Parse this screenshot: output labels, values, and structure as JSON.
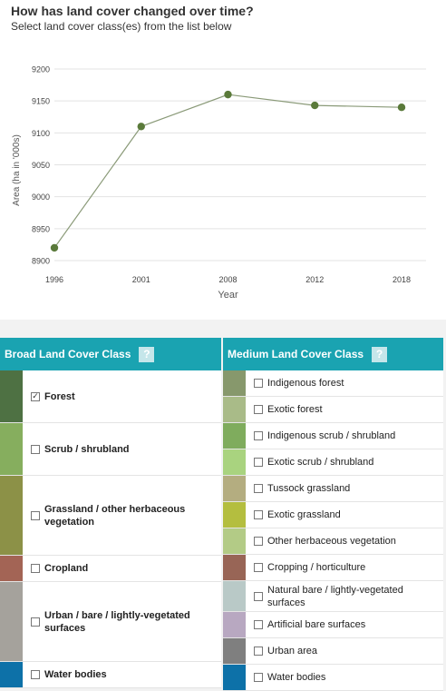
{
  "header": {
    "title": "How has land cover changed over time?",
    "subtitle": "Select land cover class(es) from the list below"
  },
  "chart_data": {
    "type": "line",
    "title": "",
    "xlabel": "Year",
    "ylabel": "Area (ha in '000s)",
    "categories": [
      "1996",
      "2001",
      "2008",
      "2012",
      "2018"
    ],
    "series": [
      {
        "values": [
          8920,
          9110,
          9160,
          9143,
          9140
        ],
        "color": "#5a7a3a"
      }
    ],
    "ylim": [
      8900,
      9200
    ],
    "yticks": [
      "8900",
      "8950",
      "9000",
      "9050",
      "9100",
      "9150",
      "9200"
    ],
    "grid": true,
    "legend": "none"
  },
  "broad": {
    "header": "Broad Land Cover Class",
    "help": "?",
    "rows": [
      {
        "label": "Forest",
        "checked": true,
        "check_glyph": "✓",
        "color": "#4e7143"
      },
      {
        "label": "Scrub / shrubland",
        "checked": false,
        "check_glyph": "",
        "color": "#86ae5e"
      },
      {
        "label": "Grassland / other herbaceous vegetation",
        "checked": false,
        "check_glyph": "",
        "color": "#8c9147"
      },
      {
        "label": "Cropland",
        "checked": false,
        "check_glyph": "",
        "color": "#a36455"
      },
      {
        "label": "Urban / bare / lightly-vegetated surfaces",
        "checked": false,
        "check_glyph": "",
        "color": "#a5a29c"
      },
      {
        "label": "Water bodies",
        "checked": false,
        "check_glyph": "",
        "color": "#0d71a8"
      }
    ]
  },
  "medium": {
    "header": "Medium Land Cover Class",
    "help": "?",
    "rows": [
      {
        "label": "Indigenous forest",
        "checked": false,
        "color": "#87986c"
      },
      {
        "label": "Exotic forest",
        "checked": false,
        "color": "#a9bb88"
      },
      {
        "label": "Indigenous scrub / shrubland",
        "checked": false,
        "color": "#7fac5d"
      },
      {
        "label": "Exotic scrub / shrubland",
        "checked": false,
        "color": "#a9d37f"
      },
      {
        "label": "Tussock grassland",
        "checked": false,
        "color": "#b4ad80"
      },
      {
        "label": "Exotic grassland",
        "checked": false,
        "color": "#b4be3f"
      },
      {
        "label": "Other herbaceous vegetation",
        "checked": false,
        "color": "#b3cb86"
      },
      {
        "label": "Cropping / horticulture",
        "checked": false,
        "color": "#986556"
      },
      {
        "label": "Natural bare / lightly-vegetated surfaces",
        "checked": false,
        "color": "#b9c9c7"
      },
      {
        "label": "Artificial bare surfaces",
        "checked": false,
        "color": "#b8a8c1"
      },
      {
        "label": "Urban area",
        "checked": false,
        "color": "#7f7f7f"
      },
      {
        "label": "Water bodies",
        "checked": false,
        "color": "#0d71a8"
      }
    ]
  }
}
